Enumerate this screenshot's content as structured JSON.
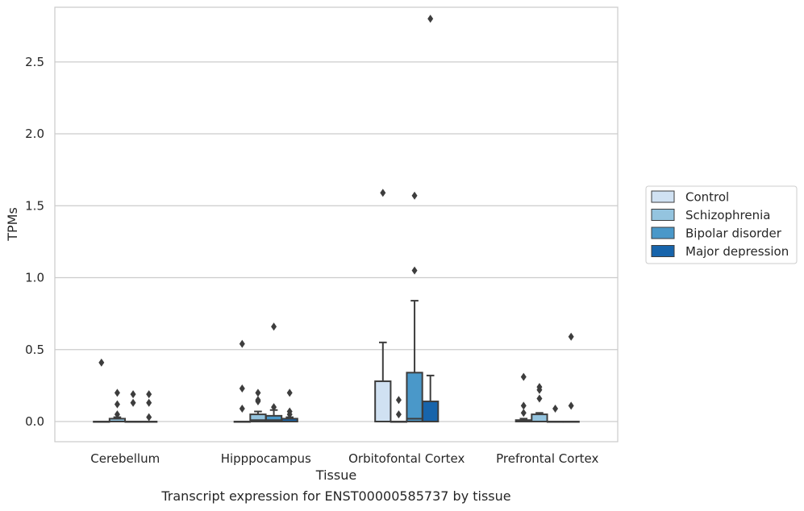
{
  "caption": "Transcript expression for ENST00000585737 by tissue",
  "chart_data": {
    "type": "box",
    "xlabel": "Tissue",
    "ylabel": "TPMs",
    "ylim": [
      -0.14,
      2.88
    ],
    "yticks": [
      0.0,
      0.5,
      1.0,
      1.5,
      2.0,
      2.5
    ],
    "ytick_labels": [
      "0.0",
      "0.5",
      "1.0",
      "1.5",
      "2.0",
      "2.5"
    ],
    "grid": true,
    "legend_position": "right",
    "categories": [
      "Cerebellum",
      "Hipppocampus",
      "Orbitofontal Cortex",
      "Prefrontal Cortex"
    ],
    "series": [
      {
        "name": "Control",
        "color": "#d0e1f2",
        "boxes": [
          {
            "q1": 0,
            "median": 0,
            "q3": 0,
            "whisker_low": 0,
            "whisker_high": 0,
            "outliers": [
              0.41
            ]
          },
          {
            "q1": 0,
            "median": 0,
            "q3": 0,
            "whisker_low": 0,
            "whisker_high": 0,
            "outliers": [
              0.54,
              0.23,
              0.09
            ]
          },
          {
            "q1": 0,
            "median": 0,
            "q3": 0.28,
            "whisker_low": 0,
            "whisker_high": 0.55,
            "outliers": [
              1.59
            ]
          },
          {
            "q1": 0,
            "median": 0,
            "q3": 0.01,
            "whisker_low": 0,
            "whisker_high": 0.02,
            "outliers": [
              0.31,
              0.11,
              0.06
            ]
          }
        ]
      },
      {
        "name": "Schizophrenia",
        "color": "#94c4df",
        "boxes": [
          {
            "q1": 0,
            "median": 0,
            "q3": 0.02,
            "whisker_low": 0,
            "whisker_high": 0.03,
            "outliers": [
              0.2,
              0.12,
              0.05
            ]
          },
          {
            "q1": 0,
            "median": 0.01,
            "q3": 0.05,
            "whisker_low": 0,
            "whisker_high": 0.07,
            "outliers": [
              0.2,
              0.15,
              0.14
            ]
          },
          {
            "q1": 0,
            "median": 0,
            "q3": 0,
            "whisker_low": 0,
            "whisker_high": 0,
            "outliers": [
              0.15,
              0.05
            ]
          },
          {
            "q1": 0,
            "median": 0,
            "q3": 0.05,
            "whisker_low": 0,
            "whisker_high": 0.06,
            "outliers": [
              0.24,
              0.22,
              0.16
            ]
          }
        ]
      },
      {
        "name": "Bipolar disorder",
        "color": "#4a98c9",
        "boxes": [
          {
            "q1": 0,
            "median": 0,
            "q3": 0,
            "whisker_low": 0,
            "whisker_high": 0,
            "outliers": [
              0.19,
              0.13
            ]
          },
          {
            "q1": 0,
            "median": 0.01,
            "q3": 0.04,
            "whisker_low": 0,
            "whisker_high": 0.08,
            "outliers": [
              0.66,
              0.1
            ]
          },
          {
            "q1": 0,
            "median": 0.02,
            "q3": 0.34,
            "whisker_low": 0,
            "whisker_high": 0.84,
            "outliers": [
              1.57,
              1.05
            ]
          },
          {
            "q1": 0,
            "median": 0,
            "q3": 0,
            "whisker_low": 0,
            "whisker_high": 0,
            "outliers": [
              0.09
            ]
          }
        ]
      },
      {
        "name": "Major depression",
        "color": "#1764ab",
        "boxes": [
          {
            "q1": 0,
            "median": 0,
            "q3": 0,
            "whisker_low": 0,
            "whisker_high": 0,
            "outliers": [
              0.19,
              0.13,
              0.03
            ]
          },
          {
            "q1": 0,
            "median": 0,
            "q3": 0.02,
            "whisker_low": 0,
            "whisker_high": 0.03,
            "outliers": [
              0.2,
              0.07,
              0.05
            ]
          },
          {
            "q1": 0,
            "median": 0,
            "q3": 0.14,
            "whisker_low": 0,
            "whisker_high": 0.32,
            "outliers": [
              2.8
            ]
          },
          {
            "q1": 0,
            "median": 0,
            "q3": 0,
            "whisker_low": 0,
            "whisker_high": 0,
            "outliers": [
              0.59,
              0.11
            ]
          }
        ]
      }
    ]
  }
}
